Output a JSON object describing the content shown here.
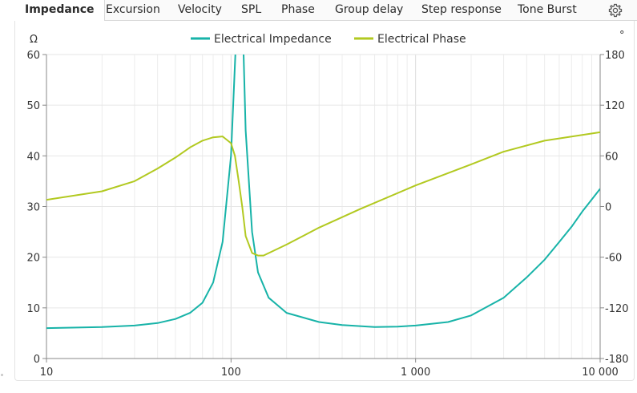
{
  "tabs": [
    {
      "label": "Impedance",
      "active": true
    },
    {
      "label": "Excursion"
    },
    {
      "label": "Velocity"
    },
    {
      "label": "SPL"
    },
    {
      "label": "Phase"
    },
    {
      "label": "Group delay"
    },
    {
      "label": "Step response"
    },
    {
      "label": "Tone Burst"
    }
  ],
  "settings_icon": "gear-icon",
  "chart_data": {
    "type": "line",
    "xscale": "log",
    "xlim": [
      10,
      10000
    ],
    "x_ticks": [
      10,
      100,
      1000,
      10000
    ],
    "x_tick_labels": [
      "10",
      "100",
      "1 000",
      "10 000"
    ],
    "y_left": {
      "unit": "Ω",
      "ylim": [
        0,
        60
      ],
      "ticks": [
        "0",
        "10",
        "20",
        "30",
        "40",
        "50",
        "60"
      ]
    },
    "y_right": {
      "unit": "°",
      "ylim": [
        -180,
        180
      ],
      "ticks": [
        "-180",
        "-120",
        "-60",
        "0",
        "60",
        "120",
        "180"
      ]
    },
    "grid": true,
    "legend_position": "top-center",
    "series": [
      {
        "name": "Electrical Impedance",
        "color": "#17b3a8",
        "axis": "left",
        "points": [
          [
            10,
            6.0
          ],
          [
            20,
            6.2
          ],
          [
            30,
            6.5
          ],
          [
            40,
            7.0
          ],
          [
            50,
            7.8
          ],
          [
            60,
            9.0
          ],
          [
            70,
            11.0
          ],
          [
            80,
            15.0
          ],
          [
            90,
            23.0
          ],
          [
            100,
            40.0
          ],
          [
            105,
            58.0
          ],
          [
            110,
            75.0
          ],
          [
            115,
            70.0
          ],
          [
            120,
            45.0
          ],
          [
            130,
            25.0
          ],
          [
            140,
            17.0
          ],
          [
            160,
            12.0
          ],
          [
            200,
            9.0
          ],
          [
            300,
            7.2
          ],
          [
            400,
            6.6
          ],
          [
            600,
            6.2
          ],
          [
            800,
            6.3
          ],
          [
            1000,
            6.5
          ],
          [
            1500,
            7.2
          ],
          [
            2000,
            8.5
          ],
          [
            3000,
            12.0
          ],
          [
            4000,
            16.0
          ],
          [
            5000,
            19.5
          ],
          [
            6000,
            23.0
          ],
          [
            7000,
            26.0
          ],
          [
            8000,
            29.0
          ],
          [
            10000,
            33.5
          ]
        ]
      },
      {
        "name": "Electrical Phase",
        "color": "#b2c920",
        "axis": "right",
        "points": [
          [
            10,
            8
          ],
          [
            20,
            18
          ],
          [
            30,
            30
          ],
          [
            40,
            45
          ],
          [
            50,
            58
          ],
          [
            60,
            70
          ],
          [
            70,
            78
          ],
          [
            80,
            82
          ],
          [
            90,
            83
          ],
          [
            100,
            75
          ],
          [
            105,
            60
          ],
          [
            110,
            30
          ],
          [
            115,
            0
          ],
          [
            120,
            -35
          ],
          [
            130,
            -55
          ],
          [
            140,
            -58
          ],
          [
            150,
            -58
          ],
          [
            200,
            -45
          ],
          [
            300,
            -25
          ],
          [
            500,
            -3
          ],
          [
            1000,
            25
          ],
          [
            2000,
            50
          ],
          [
            3000,
            65
          ],
          [
            5000,
            78
          ],
          [
            10000,
            88
          ]
        ]
      }
    ]
  }
}
